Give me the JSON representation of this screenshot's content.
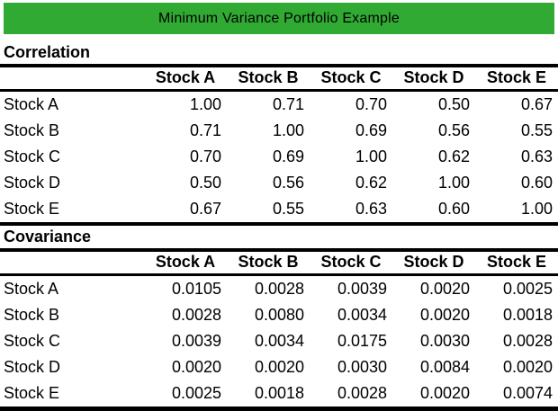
{
  "page": {
    "title": "Minimum Variance Portfolio Example"
  },
  "theme": {
    "title_bar_bg": "#30AA33",
    "title_text_color": "#000000",
    "rule_color": "#000000",
    "background": "#FFFFFF"
  },
  "chart_data": [
    {
      "type": "table",
      "title": "Correlation",
      "columns": [
        "Stock A",
        "Stock B",
        "Stock C",
        "Stock D",
        "Stock E"
      ],
      "row_labels": [
        "Stock A",
        "Stock B",
        "Stock C",
        "Stock D",
        "Stock E"
      ],
      "rows": [
        [
          "1.00",
          "0.71",
          "0.70",
          "0.50",
          "0.67"
        ],
        [
          "0.71",
          "1.00",
          "0.69",
          "0.56",
          "0.55"
        ],
        [
          "0.70",
          "0.69",
          "1.00",
          "0.62",
          "0.63"
        ],
        [
          "0.50",
          "0.56",
          "0.62",
          "1.00",
          "0.60"
        ],
        [
          "0.67",
          "0.55",
          "0.63",
          "0.60",
          "1.00"
        ]
      ]
    },
    {
      "type": "table",
      "title": "Covariance",
      "columns": [
        "Stock A",
        "Stock B",
        "Stock C",
        "Stock D",
        "Stock E"
      ],
      "row_labels": [
        "Stock A",
        "Stock B",
        "Stock C",
        "Stock D",
        "Stock E"
      ],
      "rows": [
        [
          "0.0105",
          "0.0028",
          "0.0039",
          "0.0020",
          "0.0025"
        ],
        [
          "0.0028",
          "0.0080",
          "0.0034",
          "0.0020",
          "0.0018"
        ],
        [
          "0.0039",
          "0.0034",
          "0.0175",
          "0.0030",
          "0.0028"
        ],
        [
          "0.0020",
          "0.0020",
          "0.0030",
          "0.0084",
          "0.0020"
        ],
        [
          "0.0025",
          "0.0018",
          "0.0028",
          "0.0020",
          "0.0074"
        ]
      ]
    }
  ]
}
